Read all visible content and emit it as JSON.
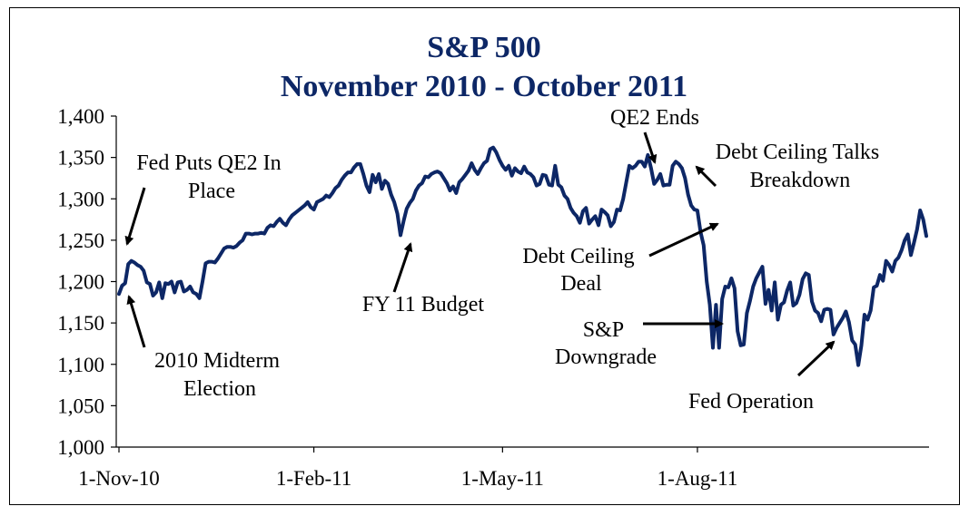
{
  "chart_data": {
    "type": "line",
    "title": "S&P 500",
    "subtitle": "November 2010 - October 2011",
    "xlabel": "",
    "ylabel": "",
    "ylim": [
      1000,
      1400
    ],
    "yticks": [
      1000,
      1050,
      1100,
      1150,
      1200,
      1250,
      1300,
      1350,
      1400
    ],
    "ytick_labels": [
      "1,000",
      "1,050",
      "1,100",
      "1,150",
      "1,200",
      "1,250",
      "1,300",
      "1,350",
      "1,400"
    ],
    "xtick_labels": [
      "1-Nov-10",
      "1-Feb-11",
      "1-May-11",
      "1-Aug-11"
    ],
    "xtick_positions": [
      0,
      63,
      124,
      187
    ],
    "grid": false,
    "line_color": "#0d2766",
    "series": [
      {
        "name": "S&P 500",
        "values": [
          1185,
          1195,
          1198,
          1221,
          1225,
          1223,
          1220,
          1218,
          1213,
          1199,
          1197,
          1183,
          1187,
          1199,
          1180,
          1198,
          1197,
          1200,
          1187,
          1199,
          1200,
          1188,
          1190,
          1194,
          1187,
          1185,
          1180,
          1200,
          1222,
          1224,
          1224,
          1223,
          1228,
          1234,
          1240,
          1242,
          1242,
          1241,
          1243,
          1247,
          1250,
          1258,
          1258,
          1257,
          1258,
          1258,
          1259,
          1258,
          1265,
          1268,
          1267,
          1272,
          1276,
          1271,
          1268,
          1275,
          1280,
          1283,
          1286,
          1289,
          1292,
          1296,
          1290,
          1287,
          1296,
          1298,
          1300,
          1304,
          1302,
          1307,
          1313,
          1316,
          1323,
          1328,
          1332,
          1332,
          1338,
          1342,
          1342,
          1330,
          1316,
          1308,
          1329,
          1320,
          1330,
          1312,
          1322,
          1318,
          1305,
          1296,
          1282,
          1256,
          1273,
          1288,
          1295,
          1300,
          1310,
          1316,
          1319,
          1327,
          1326,
          1330,
          1332,
          1333,
          1331,
          1325,
          1319,
          1310,
          1315,
          1307,
          1320,
          1324,
          1329,
          1334,
          1343,
          1335,
          1330,
          1337,
          1343,
          1346,
          1360,
          1362,
          1356,
          1347,
          1340,
          1335,
          1340,
          1328,
          1337,
          1333,
          1331,
          1339,
          1332,
          1330,
          1326,
          1316,
          1318,
          1329,
          1328,
          1317,
          1316,
          1340,
          1317,
          1314,
          1304,
          1300,
          1289,
          1283,
          1279,
          1271,
          1285,
          1289,
          1270,
          1275,
          1279,
          1268,
          1287,
          1284,
          1280,
          1267,
          1272,
          1287,
          1286,
          1300,
          1320,
          1340,
          1337,
          1340,
          1345,
          1345,
          1339,
          1353,
          1337,
          1318,
          1323,
          1330,
          1316,
          1317,
          1317,
          1340,
          1345,
          1342,
          1337,
          1325,
          1305,
          1292,
          1287,
          1286,
          1260,
          1244,
          1200,
          1172,
          1120,
          1172,
          1120,
          1179,
          1194,
          1193,
          1204,
          1192,
          1140,
          1123,
          1124,
          1162,
          1177,
          1194,
          1204,
          1211,
          1218,
          1173,
          1190,
          1165,
          1199,
          1154,
          1172,
          1175,
          1189,
          1199,
          1171,
          1174,
          1184,
          1203,
          1210,
          1208,
          1176,
          1165,
          1162,
          1152,
          1166,
          1167,
          1166,
          1136,
          1144,
          1150,
          1156,
          1164,
          1151,
          1129,
          1124,
          1099,
          1123,
          1160,
          1154,
          1165,
          1193,
          1195,
          1208,
          1201,
          1225,
          1220,
          1212,
          1225,
          1229,
          1238,
          1250,
          1257,
          1232,
          1247,
          1263,
          1286,
          1275,
          1255
        ]
      }
    ],
    "annotations": [
      {
        "lines": [
          "Fed Puts QE2 In",
          "Place"
        ]
      },
      {
        "lines": [
          "2010 Midterm",
          "Election"
        ]
      },
      {
        "lines": [
          "FY 11 Budget"
        ]
      },
      {
        "lines": [
          "QE2 Ends"
        ]
      },
      {
        "lines": [
          "Debt Ceiling Talks",
          "Breakdown"
        ]
      },
      {
        "lines": [
          "Debt Ceiling",
          "Deal"
        ]
      },
      {
        "lines": [
          "S&P",
          "Downgrade"
        ]
      },
      {
        "lines": [
          "Fed Operation"
        ]
      }
    ]
  }
}
